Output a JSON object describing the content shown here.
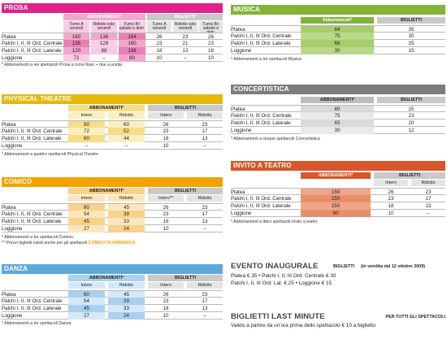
{
  "prosa": {
    "title": "PROSA",
    "hdr_abb": "ABBONAMENTI*",
    "hdr_big": "BIGLIETTI",
    "sub": [
      "Turno A venerdì",
      "Ridotto solo venerdì",
      "Turno B< sabato e dom.",
      "Turno A venerdì",
      "Ridotto solo venerdì",
      "Turno B< sabato e dom."
    ],
    "rows": [
      {
        "label": "Platea",
        "vals": [
          "160",
          "136",
          "184",
          "26",
          "23",
          "26"
        ]
      },
      {
        "label": "Palchi I, II, III Ord. Centrale",
        "vals": [
          "136",
          "128",
          "160",
          "23",
          "21",
          "23"
        ]
      },
      {
        "label": "Palchi I, II, III Ord. Laterale",
        "vals": [
          "120",
          "88",
          "136",
          "18",
          "13",
          "18"
        ]
      },
      {
        "label": "Loggione",
        "vals": [
          "72",
          "–",
          "80",
          "10",
          "–",
          "10"
        ]
      }
    ],
    "note": "* Abbonamenti a sei spettacoli Prosa a turno fisso + due a scelta"
  },
  "physical": {
    "title": "PHYSICAL THEATRE",
    "hdr_abb": "ABBONAMENTI*",
    "hdr_big": "BIGLIETTI",
    "sub": [
      "Intero",
      "Ridotto",
      "Intero",
      "Ridotto"
    ],
    "rows": [
      {
        "label": "Platea",
        "vals": [
          "80",
          "60",
          "26",
          "23"
        ]
      },
      {
        "label": "Palchi I, II, III Ord. Centrale",
        "vals": [
          "72",
          "52",
          "23",
          "17"
        ]
      },
      {
        "label": "Palchi I, II, III Ord. Laterale",
        "vals": [
          "60",
          "44",
          "18",
          "13"
        ]
      },
      {
        "label": "Loggione",
        "vals": [
          "–",
          "–",
          "10",
          "–"
        ]
      }
    ],
    "note": "* Abbonamenti a quattro spettacoli Physical Theatre"
  },
  "comico": {
    "title": "COMICO",
    "hdr_abb": "ABBONAMENTI*",
    "hdr_big": "BIGLIETTI",
    "sub": [
      "Intero",
      "Ridotto",
      "Intero**",
      "Ridotto"
    ],
    "rows": [
      {
        "label": "Platea",
        "vals": [
          "60",
          "45",
          "26",
          "23"
        ]
      },
      {
        "label": "Palchi I, II, III Ord. Centrale",
        "vals": [
          "54",
          "39",
          "23",
          "17"
        ]
      },
      {
        "label": "Palchi I, II, III Ord. Laterale",
        "vals": [
          "45",
          "33",
          "18",
          "13"
        ]
      },
      {
        "label": "Loggione",
        "vals": [
          "27",
          "24",
          "10",
          "–"
        ]
      }
    ],
    "note1": "* Abbonamenti a tre spettacoli Comico",
    "note2": "** Prezzi biglietti validi anche per gli spettacoli",
    "note2_hl": "COMICO DI DOMENICA"
  },
  "danza": {
    "title": "DANZA",
    "hdr_abb": "ABBONAMENTI*",
    "hdr_big": "BIGLIETTI",
    "sub": [
      "Intero",
      "Ridotto",
      "Intero",
      "Ridotto"
    ],
    "rows": [
      {
        "label": "Platea",
        "vals": [
          "60",
          "45",
          "26",
          "23"
        ]
      },
      {
        "label": "Palchi I, II, III Ord. Centrale",
        "vals": [
          "54",
          "39",
          "23",
          "17"
        ]
      },
      {
        "label": "Palchi I, II, III Ord. Laterale",
        "vals": [
          "45",
          "33",
          "18",
          "13"
        ]
      },
      {
        "label": "Loggione",
        "vals": [
          "27",
          "24",
          "10",
          "–"
        ]
      }
    ],
    "note": "* Abbonamenti a tre spettacoli Danza"
  },
  "musica": {
    "title": "MUSICA",
    "hdr_abb": "Abbonamenti*",
    "hdr_big": "BIGLIETTI",
    "rows": [
      {
        "label": "Platea",
        "vals": [
          "84",
          "35"
        ]
      },
      {
        "label": "Palchi I, II, III Ord. Centrale",
        "vals": [
          "75",
          "30"
        ]
      },
      {
        "label": "Palchi I, II, III Ord. Laterale",
        "vals": [
          "66",
          "25"
        ]
      },
      {
        "label": "Loggione",
        "vals": [
          "30",
          "15"
        ]
      }
    ],
    "note": "* Abbonamenti a tre spettacoli Musica"
  },
  "concertistica": {
    "title": "CONCERTISTICA",
    "hdr_abb": "ABBONAMENTI*",
    "hdr_big": "BIGLIETTI",
    "rows": [
      {
        "label": "Platea",
        "vals": [
          "80",
          "25"
        ]
      },
      {
        "label": "Palchi I, II, III Ord. Centrale",
        "vals": [
          "75",
          "23"
        ]
      },
      {
        "label": "Palchi I, II, III Ord. Laterale",
        "vals": [
          "65",
          "20"
        ]
      },
      {
        "label": "Loggione",
        "vals": [
          "30",
          "12"
        ]
      }
    ],
    "note": "* Abbonamenti a cinque spettacoli Concertistica"
  },
  "invito": {
    "title": "INVITO A TEATRO",
    "hdr_abb": "ABBONAMENTI*",
    "hdr_big": "BIGLIETTI",
    "sub": [
      "Intero",
      "Ridotto"
    ],
    "rows": [
      {
        "label": "Platea",
        "vals": [
          "150",
          "26",
          "23"
        ]
      },
      {
        "label": "Palchi I, II, III Ord. Centrale",
        "vals": [
          "150",
          "23",
          "17"
        ]
      },
      {
        "label": "Palchi I, II, III Ord. Laterale",
        "vals": [
          "150",
          "18",
          "13"
        ]
      },
      {
        "label": "Loggione",
        "vals": [
          "90",
          "10",
          "–"
        ]
      }
    ],
    "note": "* Abbonamenti a dieci spettacoli Invito a teatro"
  },
  "evento": {
    "title": "EVENTO INAUGURALE",
    "sub_label": "BIGLIETTI",
    "sub_note": "(in vendita dal 12 ottobre 2009)",
    "line1": "Platea € 35 • Palchi I, II, III Ord. Centrale € 30",
    "line2": "Palchi I, II, III Ord. Lat. € 25 • Loggione € 15"
  },
  "lastminute": {
    "title": "BIGLIETTI LAST MINUTE",
    "tag": "PER TUTTI GLI SPETTACOLI",
    "line": "Valido a partire da un'ora prima dello spettacolo € 10 a biglietto"
  },
  "colors": {
    "prosa": "#e0238a",
    "prosa_abb": "#f3a6cc",
    "prosa_cell": "#f8cde3",
    "physical": "#e5b80b",
    "physical_abb": "#f6dd86",
    "physical_cell": "#fbeec0",
    "comico": "#f2a300",
    "comico_abb": "#f8d18a",
    "comico_cell": "#fde6bd",
    "danza": "#5fa8da",
    "danza_abb": "#a9d0ef",
    "danza_cell": "#d4e8f7",
    "musica": "#82b437",
    "musica_abb": "#a8cd6c",
    "musica_cell": "#b9d98a",
    "concertistica": "#7d7d7d",
    "concertistica_abb": "#bdbdbd",
    "concertistica_cell": "#dadada",
    "invito": "#d8562b",
    "invito_abb": "#e98e6b",
    "invito_cell": "#efa688",
    "gray_hdr": "#c9c9c9",
    "gray_sub": "#e4e4e4"
  }
}
